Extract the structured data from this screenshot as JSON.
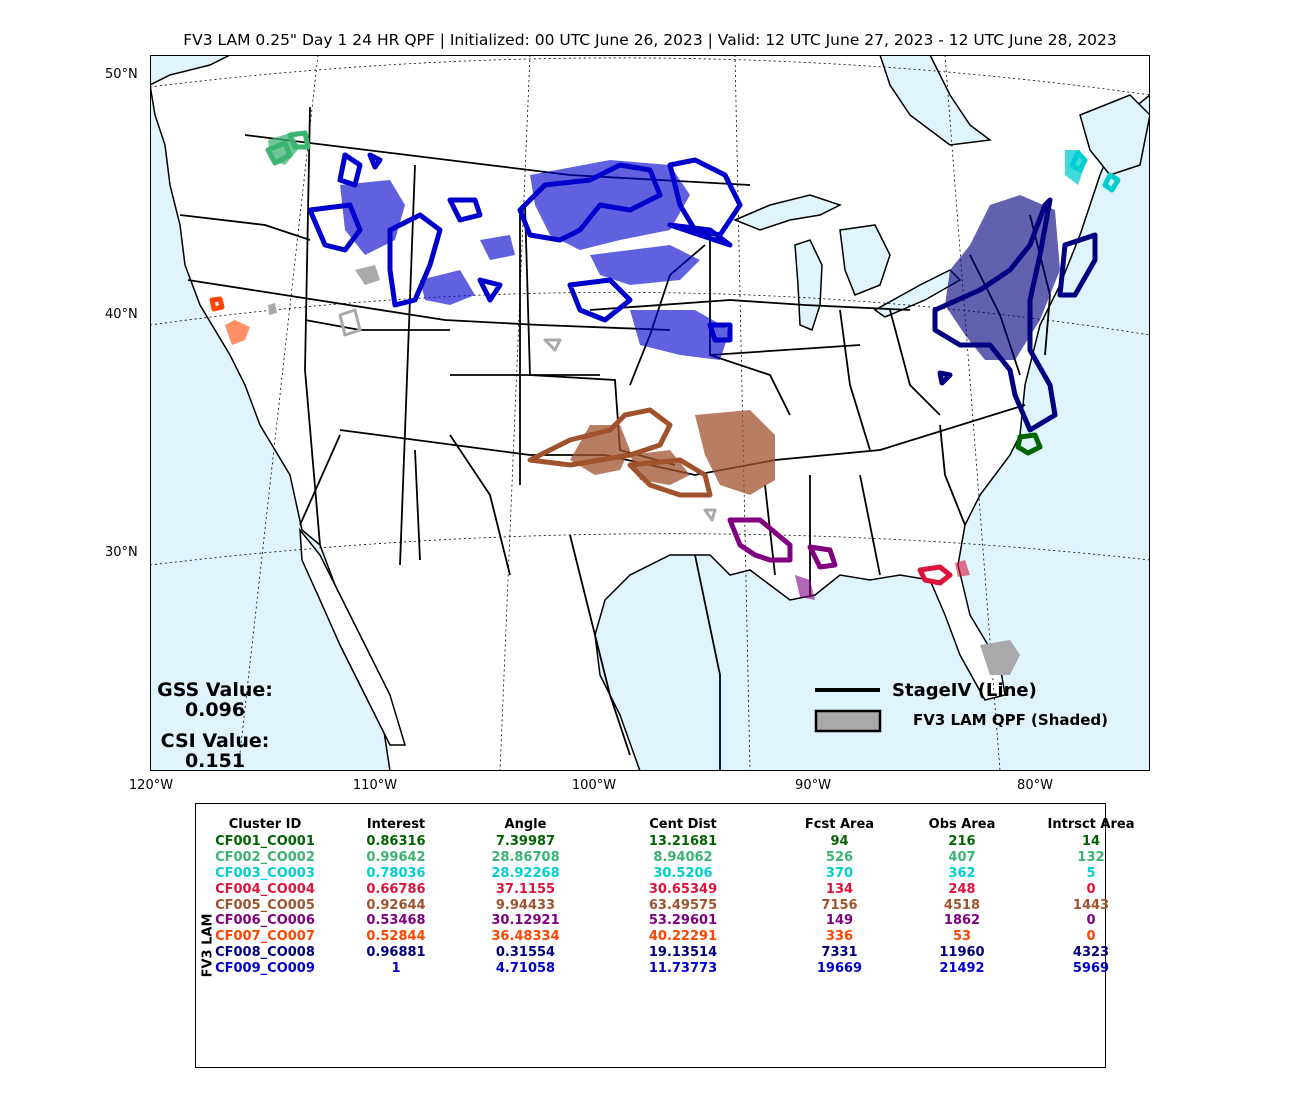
{
  "title": "FV3 LAM 0.25\" Day 1 24 HR QPF | Initialized: 00 UTC June 26, 2023 | Valid: 12 UTC June 27, 2023 - 12 UTC June 28, 2023",
  "lat_labels": [
    "50°N",
    "40°N",
    "30°N"
  ],
  "lon_labels": [
    "120°W",
    "110°W",
    "100°W",
    "90°W",
    "80°W"
  ],
  "scores": {
    "gss_label": "GSS Value:",
    "gss_value": "0.096",
    "csi_label": "CSI Value:",
    "csi_value": "0.151"
  },
  "legend": {
    "obs_label": "StageIV (Line)",
    "fcst_label": "FV3 LAM QPF (Shaded)"
  },
  "colors": {
    "ocean": "#dff4fc",
    "land": "#ffffff",
    "borders": "#000000",
    "cf001": "#006400",
    "cf002": "#3cb371",
    "cf003": "#00ced1",
    "cf004": "#dc143c",
    "cf005": "#a0522d",
    "cf006": "#800080",
    "cf007": "#ff4500",
    "cf008": "#000080",
    "cf009": "#0000cd",
    "unmatched": "#a9a9a9"
  },
  "table": {
    "model_label": "FV3 LAM",
    "headers": [
      "Cluster ID",
      "Interest",
      "Angle",
      "Cent Dist",
      "Fcst Area",
      "Obs Area",
      "Intrsct Area"
    ],
    "rows": [
      {
        "color": "#006400",
        "cells": [
          "CF001_CO001",
          "0.86316",
          "7.39987",
          "13.21681",
          "94",
          "216",
          "14"
        ]
      },
      {
        "color": "#3cb371",
        "cells": [
          "CF002_CO002",
          "0.99642",
          "28.86708",
          "8.94062",
          "526",
          "407",
          "132"
        ]
      },
      {
        "color": "#00ced1",
        "cells": [
          "CF003_CO003",
          "0.78036",
          "28.92268",
          "30.5206",
          "370",
          "362",
          "5"
        ]
      },
      {
        "color": "#dc143c",
        "cells": [
          "CF004_CO004",
          "0.66786",
          "37.1155",
          "30.65349",
          "134",
          "248",
          "0"
        ]
      },
      {
        "color": "#a0522d",
        "cells": [
          "CF005_CO005",
          "0.92644",
          "9.94433",
          "63.49575",
          "7156",
          "4518",
          "1443"
        ]
      },
      {
        "color": "#800080",
        "cells": [
          "CF006_CO006",
          "0.53468",
          "30.12921",
          "53.29601",
          "149",
          "1862",
          "0"
        ]
      },
      {
        "color": "#ff4500",
        "cells": [
          "CF007_CO007",
          "0.52844",
          "36.48334",
          "40.22291",
          "336",
          "53",
          "0"
        ]
      },
      {
        "color": "#000080",
        "cells": [
          "CF008_CO008",
          "0.96881",
          "0.31554",
          "19.13514",
          "7331",
          "11960",
          "4323"
        ]
      },
      {
        "color": "#0000cd",
        "cells": [
          "CF009_CO009",
          "1",
          "4.71058",
          "11.73773",
          "19669",
          "21492",
          "5969"
        ]
      }
    ]
  }
}
